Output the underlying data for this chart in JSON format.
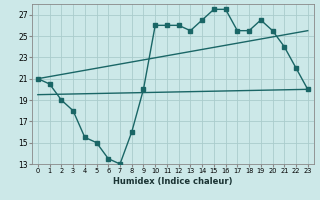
{
  "background_color": "#cce8e8",
  "grid_color": "#aacccc",
  "line_color": "#1a6666",
  "xlabel": "Humidex (Indice chaleur)",
  "xlim": [
    -0.5,
    23.5
  ],
  "ylim": [
    13,
    28
  ],
  "yticks": [
    13,
    15,
    17,
    19,
    21,
    23,
    25,
    27
  ],
  "line1_x": [
    0,
    1,
    2,
    3,
    4,
    5,
    6,
    7,
    8,
    9,
    10,
    11,
    12,
    13,
    14,
    15,
    16,
    17,
    18,
    19,
    20,
    21,
    22,
    23
  ],
  "line1_y": [
    21,
    20.5,
    19,
    18,
    15.5,
    15,
    13.5,
    13,
    16,
    20,
    26,
    26,
    26,
    25.5,
    26.5,
    27.5,
    27.5,
    25.5,
    25.5,
    26.5,
    25.5,
    24,
    22,
    20
  ],
  "line2_x": [
    0,
    23
  ],
  "line2_y": [
    21,
    25.5
  ],
  "line3_x": [
    0,
    23
  ],
  "line3_y": [
    19.5,
    20.0
  ],
  "marker_size": 2.5,
  "line_width": 1.0
}
